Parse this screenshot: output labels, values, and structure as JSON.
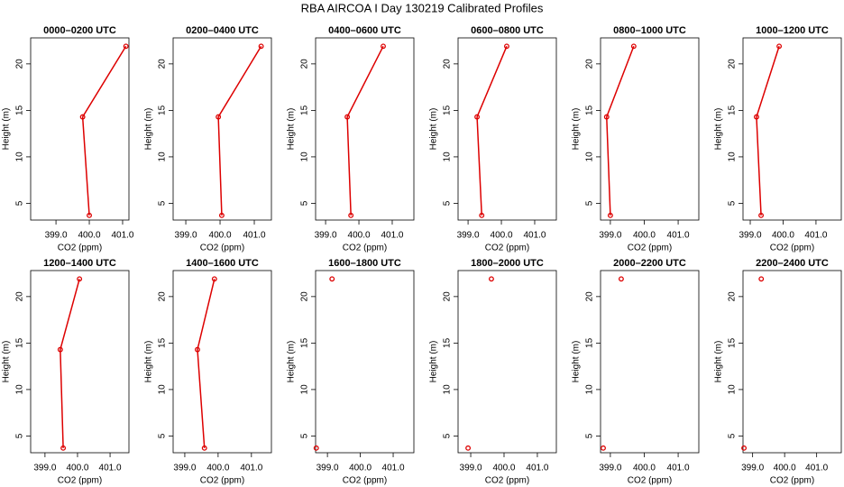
{
  "title": "RBA AIRCOA I  Day 130219  Calibrated Profiles",
  "chart_data": [
    {
      "type": "line",
      "title": "0000–0200 UTC",
      "xlabel": "CO2 (ppm)",
      "ylabel": "Height (m)",
      "color": "#dd0000",
      "x": [
        400.0,
        399.8,
        401.1
      ],
      "values": [
        3.7,
        14.3,
        21.9
      ],
      "xlim": [
        398.24,
        401.19
      ],
      "ylim": [
        3.2,
        22.8
      ],
      "xticks": [
        {
          "value": 399,
          "label": "399.0"
        },
        {
          "value": 400,
          "label": "400.0"
        },
        {
          "value": 401,
          "label": "401.0"
        }
      ],
      "yticks": [
        5,
        10,
        15,
        20
      ]
    },
    {
      "type": "line",
      "title": "0200–0400 UTC",
      "xlabel": "CO2 (ppm)",
      "ylabel": "Height (m)",
      "color": "#dd0000",
      "x": [
        400.05,
        399.95,
        401.2
      ],
      "values": [
        3.7,
        14.3,
        21.9
      ],
      "xlim": [
        398.63,
        401.5
      ],
      "ylim": [
        3.2,
        22.8
      ],
      "xticks": [
        {
          "value": 399,
          "label": "399.0"
        },
        {
          "value": 400,
          "label": "400.0"
        },
        {
          "value": 401,
          "label": "401.0"
        }
      ],
      "yticks": [
        5,
        10,
        15,
        20
      ]
    },
    {
      "type": "line",
      "title": "0400–0600 UTC",
      "xlabel": "CO2 (ppm)",
      "ylabel": "Height (m)",
      "color": "#dd0000",
      "x": [
        399.76,
        399.65,
        400.73
      ],
      "values": [
        3.7,
        14.3,
        21.9
      ],
      "xlim": [
        398.7,
        401.65
      ],
      "ylim": [
        3.2,
        22.8
      ],
      "xticks": [
        {
          "value": 399,
          "label": "399.0"
        },
        {
          "value": 400,
          "label": "400.0"
        },
        {
          "value": 401,
          "label": "401.0"
        }
      ],
      "yticks": [
        5,
        10,
        15,
        20
      ]
    },
    {
      "type": "line",
      "title": "0600–0800 UTC",
      "xlabel": "CO2 (ppm)",
      "ylabel": "Height (m)",
      "color": "#dd0000",
      "x": [
        399.41,
        399.27,
        400.16
      ],
      "values": [
        3.7,
        14.3,
        21.9
      ],
      "xlim": [
        398.7,
        401.65
      ],
      "ylim": [
        3.2,
        22.8
      ],
      "xticks": [
        {
          "value": 399,
          "label": "399.0"
        },
        {
          "value": 400,
          "label": "400.0"
        },
        {
          "value": 401,
          "label": "401.0"
        }
      ],
      "yticks": [
        5,
        10,
        15,
        20
      ]
    },
    {
      "type": "line",
      "title": "0800–1000 UTC",
      "xlabel": "CO2 (ppm)",
      "ylabel": "Height (m)",
      "color": "#dd0000",
      "x": [
        399.0,
        398.89,
        399.69
      ],
      "values": [
        3.7,
        14.3,
        21.9
      ],
      "xlim": [
        398.71,
        401.61
      ],
      "ylim": [
        3.2,
        22.8
      ],
      "xticks": [
        {
          "value": 399,
          "label": "399.0"
        },
        {
          "value": 400,
          "label": "400.0"
        },
        {
          "value": 401,
          "label": "401.0"
        }
      ],
      "yticks": [
        5,
        10,
        15,
        20
      ]
    },
    {
      "type": "line",
      "title": "1000–1200 UTC",
      "xlabel": "CO2 (ppm)",
      "ylabel": "Height (m)",
      "color": "#dd0000",
      "x": [
        399.33,
        399.19,
        399.88
      ],
      "values": [
        3.7,
        14.3,
        21.9
      ],
      "xlim": [
        398.78,
        401.77
      ],
      "ylim": [
        3.2,
        22.8
      ],
      "xticks": [
        {
          "value": 399,
          "label": "399.0"
        },
        {
          "value": 400,
          "label": "400.0"
        },
        {
          "value": 401,
          "label": "401.0"
        }
      ],
      "yticks": [
        5,
        10,
        15,
        20
      ]
    },
    {
      "type": "line",
      "title": "1200–1400 UTC",
      "xlabel": "CO2 (ppm)",
      "ylabel": "Height (m)",
      "color": "#dd0000",
      "x": [
        399.56,
        399.47,
        400.06
      ],
      "values": [
        3.7,
        14.3,
        21.9
      ],
      "xlim": [
        398.56,
        401.58
      ],
      "ylim": [
        3.2,
        22.8
      ],
      "xticks": [
        {
          "value": 399,
          "label": "399.0"
        },
        {
          "value": 400,
          "label": "400.0"
        },
        {
          "value": 401,
          "label": "401.0"
        }
      ],
      "yticks": [
        5,
        10,
        15,
        20
      ]
    },
    {
      "type": "line",
      "title": "1400–1600 UTC",
      "xlabel": "CO2 (ppm)",
      "ylabel": "Height (m)",
      "color": "#dd0000",
      "x": [
        399.59,
        399.38,
        399.89
      ],
      "values": [
        3.7,
        14.3,
        21.9
      ],
      "xlim": [
        398.65,
        401.6
      ],
      "ylim": [
        3.2,
        22.8
      ],
      "xticks": [
        {
          "value": 399,
          "label": "399.0"
        },
        {
          "value": 400,
          "label": "400.0"
        },
        {
          "value": 401,
          "label": "401.0"
        }
      ],
      "yticks": [
        5,
        10,
        15,
        20
      ]
    },
    {
      "type": "line",
      "title": "1600–1800 UTC",
      "xlabel": "CO2 (ppm)",
      "ylabel": "Height (m)",
      "color": "#dd0000",
      "x": [
        398.66,
        null,
        399.14
      ],
      "values": [
        3.7,
        null,
        21.9
      ],
      "xlim": [
        398.64,
        401.63
      ],
      "ylim": [
        3.2,
        22.8
      ],
      "xticks": [
        {
          "value": 399,
          "label": "399.0"
        },
        {
          "value": 400,
          "label": "400.0"
        },
        {
          "value": 401,
          "label": "401.0"
        }
      ],
      "yticks": [
        5,
        10,
        15,
        20
      ]
    },
    {
      "type": "line",
      "title": "1800–2000 UTC",
      "xlabel": "CO2 (ppm)",
      "ylabel": "Height (m)",
      "color": "#dd0000",
      "x": [
        398.92,
        null,
        399.62
      ],
      "values": [
        3.7,
        null,
        21.9
      ],
      "xlim": [
        398.62,
        401.57
      ],
      "ylim": [
        3.2,
        22.8
      ],
      "xticks": [
        {
          "value": 399,
          "label": "399.0"
        },
        {
          "value": 400,
          "label": "400.0"
        },
        {
          "value": 401,
          "label": "401.0"
        }
      ],
      "yticks": [
        5,
        10,
        15,
        20
      ]
    },
    {
      "type": "line",
      "title": "2000–2200 UTC",
      "xlabel": "CO2 (ppm)",
      "ylabel": "Height (m)",
      "color": "#dd0000",
      "x": [
        398.79,
        null,
        399.32
      ],
      "values": [
        3.7,
        null,
        21.9
      ],
      "xlim": [
        398.71,
        401.61
      ],
      "ylim": [
        3.2,
        22.8
      ],
      "xticks": [
        {
          "value": 399,
          "label": "399.0"
        },
        {
          "value": 400,
          "label": "400.0"
        },
        {
          "value": 401,
          "label": "401.0"
        }
      ],
      "yticks": [
        5,
        10,
        15,
        20
      ]
    },
    {
      "type": "line",
      "title": "2200–2400 UTC",
      "xlabel": "CO2 (ppm)",
      "ylabel": "Height (m)",
      "color": "#dd0000",
      "x": [
        398.73,
        null,
        399.27
      ],
      "values": [
        3.7,
        null,
        21.9
      ],
      "xlim": [
        398.7,
        401.77
      ],
      "ylim": [
        3.2,
        22.8
      ],
      "xticks": [
        {
          "value": 399,
          "label": "399.0"
        },
        {
          "value": 400,
          "label": "400.0"
        },
        {
          "value": 401,
          "label": "401.0"
        }
      ],
      "yticks": [
        5,
        10,
        15,
        20
      ]
    }
  ]
}
